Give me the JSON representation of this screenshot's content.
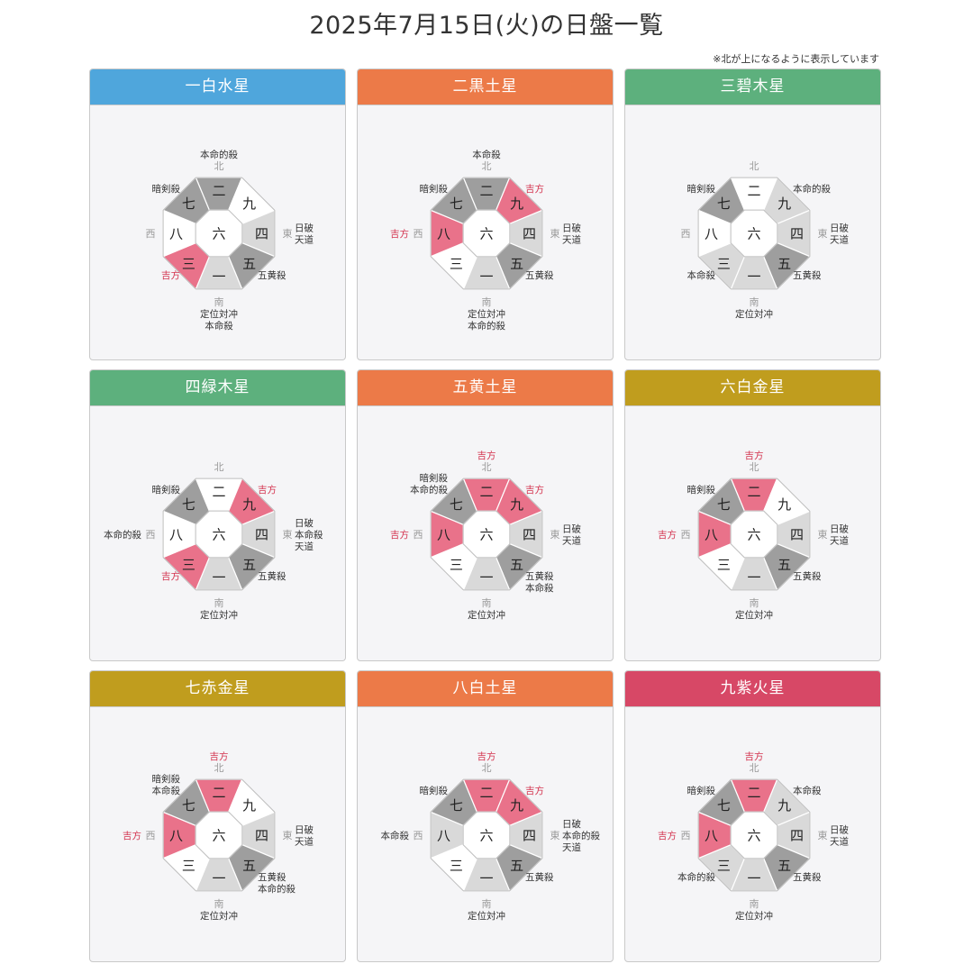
{
  "page": {
    "title": "2025年7月15日(火)の日盤一覧",
    "note": "※北が上になるように表示しています"
  },
  "colors": {
    "blue": "#4fa6dc",
    "orange": "#ec7a48",
    "green": "#5db07d",
    "gold": "#c09d1e",
    "crimson": "#d74866",
    "fill_white": "#ffffff",
    "fill_light": "#d9d9d9",
    "fill_gray": "#9e9e9e",
    "fill_pink": "#e9728a",
    "lucky_text": "#d4344f"
  },
  "direction_labels": {
    "N": "北",
    "NE": "",
    "E": "東",
    "SE": "",
    "S": "南",
    "SW": "",
    "W": "西",
    "NW": ""
  },
  "center_number": "六",
  "stars": [
    {
      "name": "一白水星",
      "color": "blue",
      "sectors": {
        "N": {
          "num": "二",
          "fill": "gray"
        },
        "NE": {
          "num": "九",
          "fill": "white"
        },
        "E": {
          "num": "四",
          "fill": "light"
        },
        "SE": {
          "num": "五",
          "fill": "gray"
        },
        "S": {
          "num": "一",
          "fill": "light"
        },
        "SW": {
          "num": "三",
          "fill": "pink"
        },
        "W": {
          "num": "八",
          "fill": "white"
        },
        "NW": {
          "num": "七",
          "fill": "gray"
        }
      },
      "labels": {
        "N": [
          {
            "t": "本命的殺",
            "lucky": false
          }
        ],
        "NE": [],
        "E": [
          {
            "t": "日破",
            "lucky": false
          },
          {
            "t": "天道",
            "lucky": false
          }
        ],
        "SE": [
          {
            "t": "五黄殺",
            "lucky": false
          }
        ],
        "S": [
          {
            "t": "定位対冲",
            "lucky": false
          },
          {
            "t": "本命殺",
            "lucky": false
          }
        ],
        "SW": [
          {
            "t": "吉方",
            "lucky": true
          }
        ],
        "W": [],
        "NW": [
          {
            "t": "暗剣殺",
            "lucky": false
          }
        ]
      }
    },
    {
      "name": "二黒土星",
      "color": "orange",
      "sectors": {
        "N": {
          "num": "二",
          "fill": "gray"
        },
        "NE": {
          "num": "九",
          "fill": "pink"
        },
        "E": {
          "num": "四",
          "fill": "light"
        },
        "SE": {
          "num": "五",
          "fill": "gray"
        },
        "S": {
          "num": "一",
          "fill": "light"
        },
        "SW": {
          "num": "三",
          "fill": "white"
        },
        "W": {
          "num": "八",
          "fill": "pink"
        },
        "NW": {
          "num": "七",
          "fill": "gray"
        }
      },
      "labels": {
        "N": [
          {
            "t": "本命殺",
            "lucky": false
          }
        ],
        "NE": [
          {
            "t": "吉方",
            "lucky": true
          }
        ],
        "E": [
          {
            "t": "日破",
            "lucky": false
          },
          {
            "t": "天道",
            "lucky": false
          }
        ],
        "SE": [
          {
            "t": "五黄殺",
            "lucky": false
          }
        ],
        "S": [
          {
            "t": "定位対冲",
            "lucky": false
          },
          {
            "t": "本命的殺",
            "lucky": false
          }
        ],
        "SW": [],
        "W": [
          {
            "t": "吉方",
            "lucky": true
          }
        ],
        "NW": [
          {
            "t": "暗剣殺",
            "lucky": false
          }
        ]
      }
    },
    {
      "name": "三碧木星",
      "color": "green",
      "sectors": {
        "N": {
          "num": "二",
          "fill": "white"
        },
        "NE": {
          "num": "九",
          "fill": "light"
        },
        "E": {
          "num": "四",
          "fill": "light"
        },
        "SE": {
          "num": "五",
          "fill": "gray"
        },
        "S": {
          "num": "一",
          "fill": "light"
        },
        "SW": {
          "num": "三",
          "fill": "light"
        },
        "W": {
          "num": "八",
          "fill": "white"
        },
        "NW": {
          "num": "七",
          "fill": "gray"
        }
      },
      "labels": {
        "N": [],
        "NE": [
          {
            "t": "本命的殺",
            "lucky": false
          }
        ],
        "E": [
          {
            "t": "日破",
            "lucky": false
          },
          {
            "t": "天道",
            "lucky": false
          }
        ],
        "SE": [
          {
            "t": "五黄殺",
            "lucky": false
          }
        ],
        "S": [
          {
            "t": "定位対冲",
            "lucky": false
          }
        ],
        "SW": [
          {
            "t": "本命殺",
            "lucky": false
          }
        ],
        "W": [],
        "NW": [
          {
            "t": "暗剣殺",
            "lucky": false
          }
        ]
      }
    },
    {
      "name": "四緑木星",
      "color": "green",
      "sectors": {
        "N": {
          "num": "二",
          "fill": "white"
        },
        "NE": {
          "num": "九",
          "fill": "pink"
        },
        "E": {
          "num": "四",
          "fill": "light"
        },
        "SE": {
          "num": "五",
          "fill": "gray"
        },
        "S": {
          "num": "一",
          "fill": "light"
        },
        "SW": {
          "num": "三",
          "fill": "pink"
        },
        "W": {
          "num": "八",
          "fill": "white"
        },
        "NW": {
          "num": "七",
          "fill": "gray"
        }
      },
      "labels": {
        "N": [],
        "NE": [
          {
            "t": "吉方",
            "lucky": true
          }
        ],
        "E": [
          {
            "t": "日破",
            "lucky": false
          },
          {
            "t": "本命殺",
            "lucky": false
          },
          {
            "t": "天道",
            "lucky": false
          }
        ],
        "SE": [
          {
            "t": "五黄殺",
            "lucky": false
          }
        ],
        "S": [
          {
            "t": "定位対冲",
            "lucky": false
          }
        ],
        "SW": [
          {
            "t": "吉方",
            "lucky": true
          }
        ],
        "W": [
          {
            "t": "本命的殺",
            "lucky": false
          }
        ],
        "NW": [
          {
            "t": "暗剣殺",
            "lucky": false
          }
        ]
      }
    },
    {
      "name": "五黄土星",
      "color": "orange",
      "sectors": {
        "N": {
          "num": "二",
          "fill": "pink"
        },
        "NE": {
          "num": "九",
          "fill": "pink"
        },
        "E": {
          "num": "四",
          "fill": "light"
        },
        "SE": {
          "num": "五",
          "fill": "gray"
        },
        "S": {
          "num": "一",
          "fill": "light"
        },
        "SW": {
          "num": "三",
          "fill": "white"
        },
        "W": {
          "num": "八",
          "fill": "pink"
        },
        "NW": {
          "num": "七",
          "fill": "gray"
        }
      },
      "labels": {
        "N": [
          {
            "t": "吉方",
            "lucky": true
          }
        ],
        "NE": [
          {
            "t": "吉方",
            "lucky": true
          }
        ],
        "E": [
          {
            "t": "日破",
            "lucky": false
          },
          {
            "t": "天道",
            "lucky": false
          }
        ],
        "SE": [
          {
            "t": "五黄殺",
            "lucky": false
          },
          {
            "t": "本命殺",
            "lucky": false
          }
        ],
        "S": [
          {
            "t": "定位対冲",
            "lucky": false
          }
        ],
        "SW": [],
        "W": [
          {
            "t": "吉方",
            "lucky": true
          }
        ],
        "NW": [
          {
            "t": "暗剣殺",
            "lucky": false
          },
          {
            "t": "本命的殺",
            "lucky": false
          }
        ]
      }
    },
    {
      "name": "六白金星",
      "color": "gold",
      "sectors": {
        "N": {
          "num": "二",
          "fill": "pink"
        },
        "NE": {
          "num": "九",
          "fill": "white"
        },
        "E": {
          "num": "四",
          "fill": "light"
        },
        "SE": {
          "num": "五",
          "fill": "gray"
        },
        "S": {
          "num": "一",
          "fill": "light"
        },
        "SW": {
          "num": "三",
          "fill": "white"
        },
        "W": {
          "num": "八",
          "fill": "pink"
        },
        "NW": {
          "num": "七",
          "fill": "gray"
        }
      },
      "labels": {
        "N": [
          {
            "t": "吉方",
            "lucky": true
          }
        ],
        "NE": [],
        "E": [
          {
            "t": "日破",
            "lucky": false
          },
          {
            "t": "天道",
            "lucky": false
          }
        ],
        "SE": [
          {
            "t": "五黄殺",
            "lucky": false
          }
        ],
        "S": [
          {
            "t": "定位対冲",
            "lucky": false
          }
        ],
        "SW": [],
        "W": [
          {
            "t": "吉方",
            "lucky": true
          }
        ],
        "NW": [
          {
            "t": "暗剣殺",
            "lucky": false
          }
        ]
      }
    },
    {
      "name": "七赤金星",
      "color": "gold",
      "sectors": {
        "N": {
          "num": "二",
          "fill": "pink"
        },
        "NE": {
          "num": "九",
          "fill": "white"
        },
        "E": {
          "num": "四",
          "fill": "light"
        },
        "SE": {
          "num": "五",
          "fill": "gray"
        },
        "S": {
          "num": "一",
          "fill": "light"
        },
        "SW": {
          "num": "三",
          "fill": "white"
        },
        "W": {
          "num": "八",
          "fill": "pink"
        },
        "NW": {
          "num": "七",
          "fill": "gray"
        }
      },
      "labels": {
        "N": [
          {
            "t": "吉方",
            "lucky": true
          }
        ],
        "NE": [],
        "E": [
          {
            "t": "日破",
            "lucky": false
          },
          {
            "t": "天道",
            "lucky": false
          }
        ],
        "SE": [
          {
            "t": "五黄殺",
            "lucky": false
          },
          {
            "t": "本命的殺",
            "lucky": false
          }
        ],
        "S": [
          {
            "t": "定位対冲",
            "lucky": false
          }
        ],
        "SW": [],
        "W": [
          {
            "t": "吉方",
            "lucky": true
          }
        ],
        "NW": [
          {
            "t": "暗剣殺",
            "lucky": false
          },
          {
            "t": "本命殺",
            "lucky": false
          }
        ]
      }
    },
    {
      "name": "八白土星",
      "color": "orange",
      "sectors": {
        "N": {
          "num": "二",
          "fill": "pink"
        },
        "NE": {
          "num": "九",
          "fill": "pink"
        },
        "E": {
          "num": "四",
          "fill": "light"
        },
        "SE": {
          "num": "五",
          "fill": "gray"
        },
        "S": {
          "num": "一",
          "fill": "light"
        },
        "SW": {
          "num": "三",
          "fill": "white"
        },
        "W": {
          "num": "八",
          "fill": "light"
        },
        "NW": {
          "num": "七",
          "fill": "gray"
        }
      },
      "labels": {
        "N": [
          {
            "t": "吉方",
            "lucky": true
          }
        ],
        "NE": [
          {
            "t": "吉方",
            "lucky": true
          }
        ],
        "E": [
          {
            "t": "日破",
            "lucky": false
          },
          {
            "t": "本命的殺",
            "lucky": false
          },
          {
            "t": "天道",
            "lucky": false
          }
        ],
        "SE": [
          {
            "t": "五黄殺",
            "lucky": false
          }
        ],
        "S": [
          {
            "t": "定位対冲",
            "lucky": false
          }
        ],
        "SW": [],
        "W": [
          {
            "t": "本命殺",
            "lucky": false
          }
        ],
        "NW": [
          {
            "t": "暗剣殺",
            "lucky": false
          }
        ]
      }
    },
    {
      "name": "九紫火星",
      "color": "crimson",
      "sectors": {
        "N": {
          "num": "二",
          "fill": "pink"
        },
        "NE": {
          "num": "九",
          "fill": "light"
        },
        "E": {
          "num": "四",
          "fill": "light"
        },
        "SE": {
          "num": "五",
          "fill": "gray"
        },
        "S": {
          "num": "一",
          "fill": "light"
        },
        "SW": {
          "num": "三",
          "fill": "light"
        },
        "W": {
          "num": "八",
          "fill": "pink"
        },
        "NW": {
          "num": "七",
          "fill": "gray"
        }
      },
      "labels": {
        "N": [
          {
            "t": "吉方",
            "lucky": true
          }
        ],
        "NE": [
          {
            "t": "本命殺",
            "lucky": false
          }
        ],
        "E": [
          {
            "t": "日破",
            "lucky": false
          },
          {
            "t": "天道",
            "lucky": false
          }
        ],
        "SE": [
          {
            "t": "五黄殺",
            "lucky": false
          }
        ],
        "S": [
          {
            "t": "定位対冲",
            "lucky": false
          }
        ],
        "SW": [
          {
            "t": "本命的殺",
            "lucky": false
          }
        ],
        "W": [
          {
            "t": "吉方",
            "lucky": true
          }
        ],
        "NW": [
          {
            "t": "暗剣殺",
            "lucky": false
          }
        ]
      }
    }
  ]
}
